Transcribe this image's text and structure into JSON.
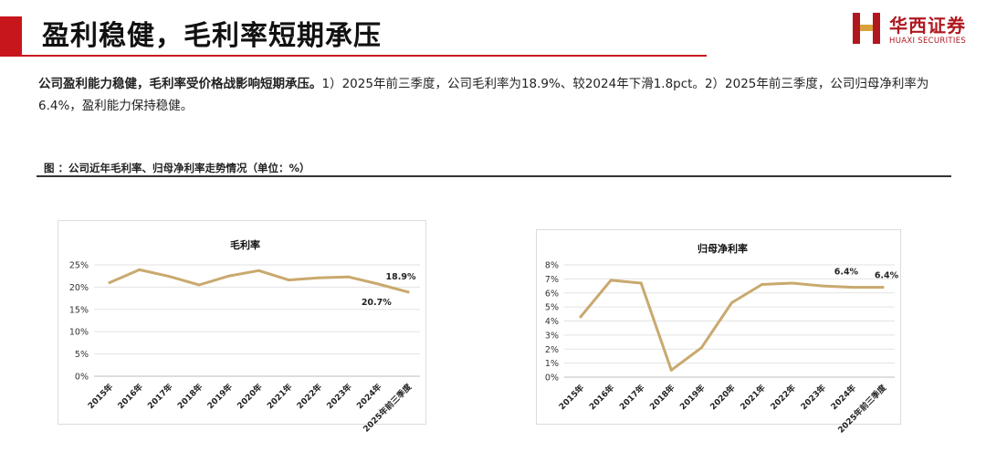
{
  "header": {
    "title": "盈利稳健，毛利率短期承压",
    "logo": {
      "name_cn": "华西证券",
      "name_en": "HUAXI SECURITIES"
    }
  },
  "summary": {
    "bold": "公司盈利能力稳健，毛利率受价格战影响短期承压。",
    "text": "1）2025年前三季度，公司毛利率为18.9%、较2024年下滑1.8pct。2）2025年前三季度，公司归母净利率为6.4%，盈利能力保持稳健。"
  },
  "figure_caption": "图 ：公司近年毛利率、归母净利率走势情况（单位：%）",
  "colors": {
    "accent": "#c8161d",
    "line": "#c9a96e"
  },
  "chart_data": [
    {
      "type": "line",
      "title": "毛利率",
      "categories": [
        "2015年",
        "2016年",
        "2017年",
        "2018年",
        "2019年",
        "2020年",
        "2021年",
        "2022年",
        "2023年",
        "2024年",
        "2025年前三季度"
      ],
      "series": [
        {
          "values": [
            21.0,
            23.9,
            22.4,
            20.5,
            22.5,
            23.7,
            21.6,
            22.1,
            22.3,
            20.7,
            18.9
          ]
        }
      ],
      "ylim": [
        0,
        25
      ],
      "yticks": [
        "0%",
        "5%",
        "10%",
        "15%",
        "20%",
        "25%"
      ],
      "data_labels": [
        {
          "index": 9,
          "text": "20.7%"
        },
        {
          "index": 10,
          "text": "18.9%"
        }
      ],
      "grid": true
    },
    {
      "type": "line",
      "title": "归母净利率",
      "categories": [
        "2015年",
        "2016年",
        "2017年",
        "2018年",
        "2019年",
        "2020年",
        "2021年",
        "2022年",
        "2023年",
        "2024年",
        "2025年前三季度"
      ],
      "series": [
        {
          "values": [
            4.3,
            6.9,
            6.7,
            0.5,
            2.1,
            5.3,
            6.6,
            6.7,
            6.5,
            6.4,
            6.4
          ]
        }
      ],
      "ylim": [
        0,
        8
      ],
      "yticks": [
        "0%",
        "1%",
        "2%",
        "3%",
        "4%",
        "5%",
        "6%",
        "7%",
        "8%"
      ],
      "data_labels": [
        {
          "index": 9,
          "text": "6.4%"
        },
        {
          "index": 10,
          "text": "6.4%"
        }
      ],
      "grid": true
    }
  ]
}
